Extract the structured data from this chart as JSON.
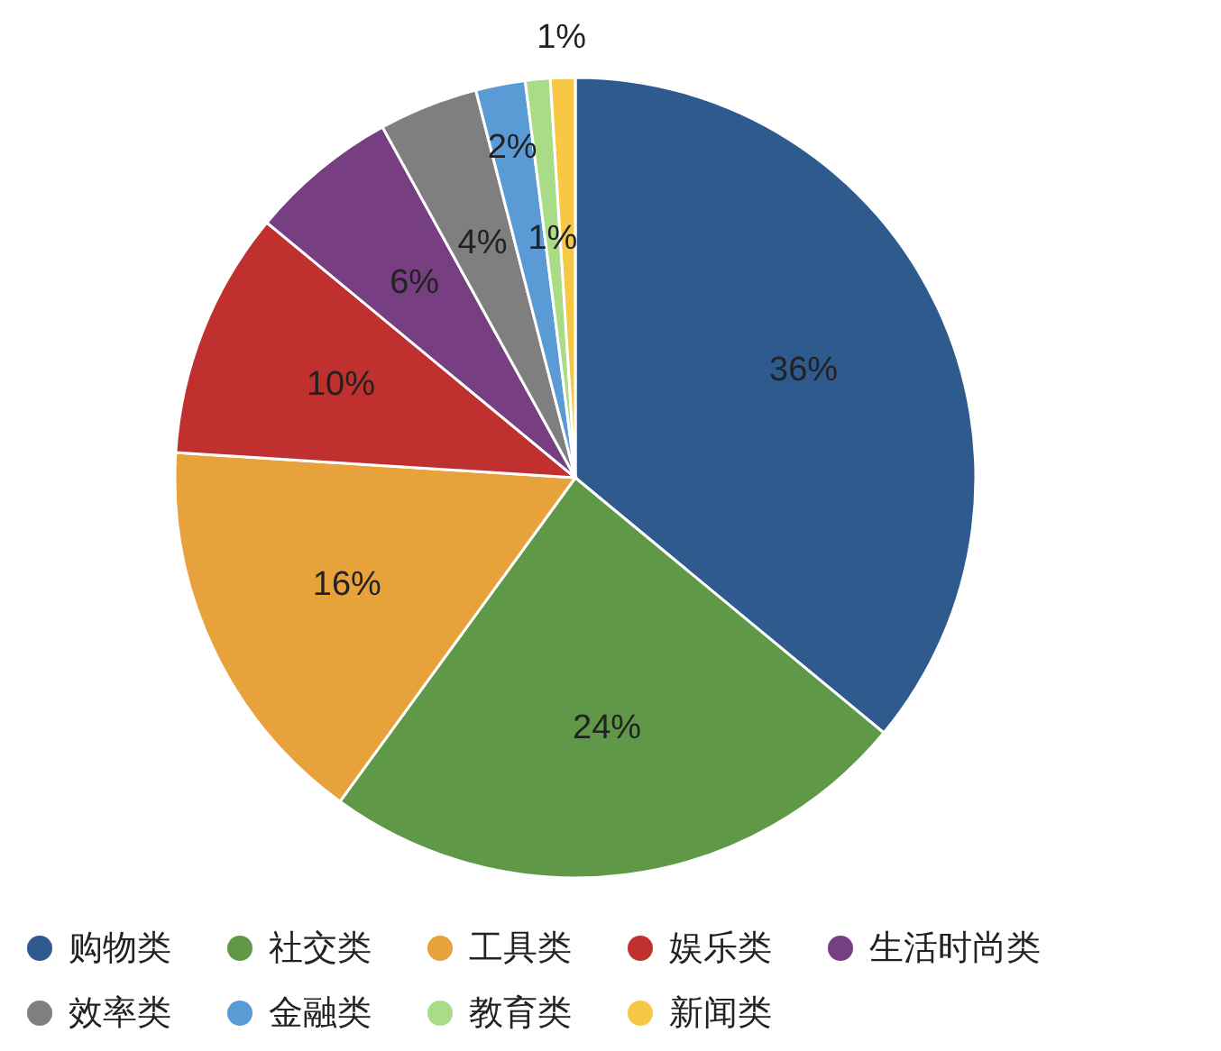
{
  "chart_data": {
    "type": "pie",
    "categories": [
      "购物类",
      "社交类",
      "工具类",
      "娱乐类",
      "生活时尚类",
      "效率类",
      "金融类",
      "教育类",
      "新闻类"
    ],
    "values": [
      36,
      24,
      16,
      10,
      6,
      4,
      2,
      1,
      1
    ],
    "colors": [
      "#2f5a8d",
      "#5f9948",
      "#e8a23c",
      "#bf302f",
      "#773f82",
      "#7f7f7f",
      "#5a9bd6",
      "#a8dc86",
      "#f6c844"
    ],
    "value_labels": [
      "36%",
      "24%",
      "16%",
      "10%",
      "6%",
      "4%",
      "2%",
      "1%",
      "1%"
    ],
    "legend": "bottom"
  }
}
